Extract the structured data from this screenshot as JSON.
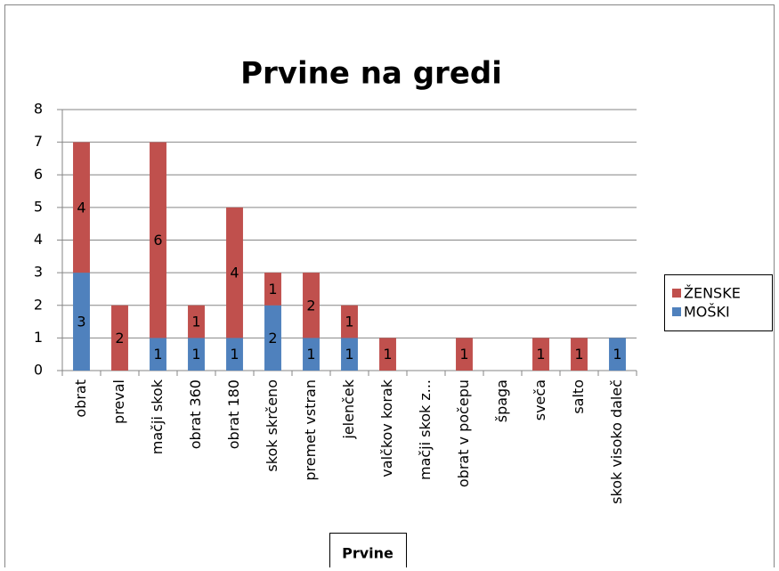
{
  "chart_data": {
    "type": "stacked_bar",
    "title": "Prvine na gredi",
    "x_label": "Prvine",
    "categories": [
      "obrat",
      "preval",
      "mačji skok",
      "obrat 360",
      "obrat 180",
      "skok skrčeno",
      "premet vstran",
      "jelenček",
      "valčkov korak",
      "mačji skok z...",
      "obrat v počepu",
      "špaga",
      "sveča",
      "salto",
      "skok visoko daleč"
    ],
    "series": [
      {
        "name": "MOŠKI",
        "color": "#4f81bd",
        "values": [
          3,
          null,
          1,
          1,
          1,
          2,
          1,
          1,
          null,
          null,
          null,
          null,
          null,
          null,
          1
        ]
      },
      {
        "name": "ŽENSKE",
        "color": "#c0504d",
        "values": [
          4,
          2,
          6,
          1,
          4,
          1,
          2,
          1,
          1,
          null,
          1,
          null,
          1,
          1,
          null
        ]
      }
    ],
    "ylim": [
      0,
      8
    ],
    "yticks": [
      0,
      1,
      2,
      3,
      4,
      5,
      6,
      7,
      8
    ],
    "grid": true,
    "legend": "right"
  }
}
